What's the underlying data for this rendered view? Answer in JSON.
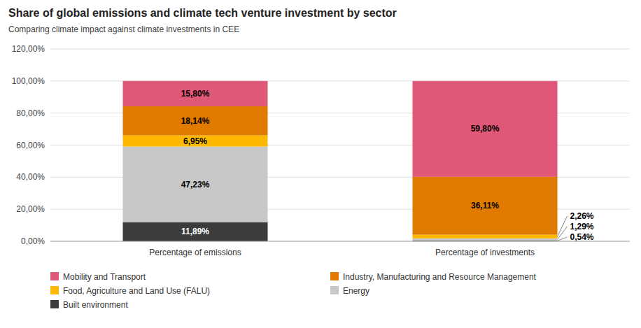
{
  "chart_data": {
    "type": "bar",
    "stacked": true,
    "title": "Share of global emissions and climate tech venture investment by sector",
    "subtitle": "Comparing climate impact against climate investments in CEE",
    "categories": [
      "Percentage of emissions",
      "Percentage of investments"
    ],
    "series": [
      {
        "name": "Built environment",
        "color": "#3C3C3C",
        "values": [
          11.89,
          0.54
        ],
        "value_labels": [
          "11,89%",
          "0,54%"
        ]
      },
      {
        "name": "Energy",
        "color": "#C8C8C8",
        "values": [
          47.23,
          1.29
        ],
        "value_labels": [
          "47,23%",
          "1,29%"
        ]
      },
      {
        "name": "Food, Agriculture and Land Use (FALU)",
        "color": "#FFB800",
        "values": [
          6.95,
          2.26
        ],
        "value_labels": [
          "6,95%",
          "2,26%"
        ]
      },
      {
        "name": "Industry, Manufacturing and Resource Management",
        "color": "#E07B00",
        "values": [
          18.14,
          36.11
        ],
        "value_labels": [
          "18,14%",
          "36,11%"
        ]
      },
      {
        "name": "Mobility and Transport",
        "color": "#E05878",
        "values": [
          15.8,
          59.8
        ],
        "value_labels": [
          "15,80%",
          "59,80%"
        ]
      }
    ],
    "ylim": [
      0,
      120
    ],
    "yticks": [
      {
        "value": 0,
        "label": "0,00%"
      },
      {
        "value": 20,
        "label": "20,00%"
      },
      {
        "value": 40,
        "label": "40,00%"
      },
      {
        "value": 60,
        "label": "60,00%"
      },
      {
        "value": 80,
        "label": "80,00%"
      },
      {
        "value": 100,
        "label": "100,00%"
      },
      {
        "value": 120,
        "label": "120,00%"
      }
    ],
    "grid": true,
    "data_labels": true,
    "legend": "bottom"
  }
}
